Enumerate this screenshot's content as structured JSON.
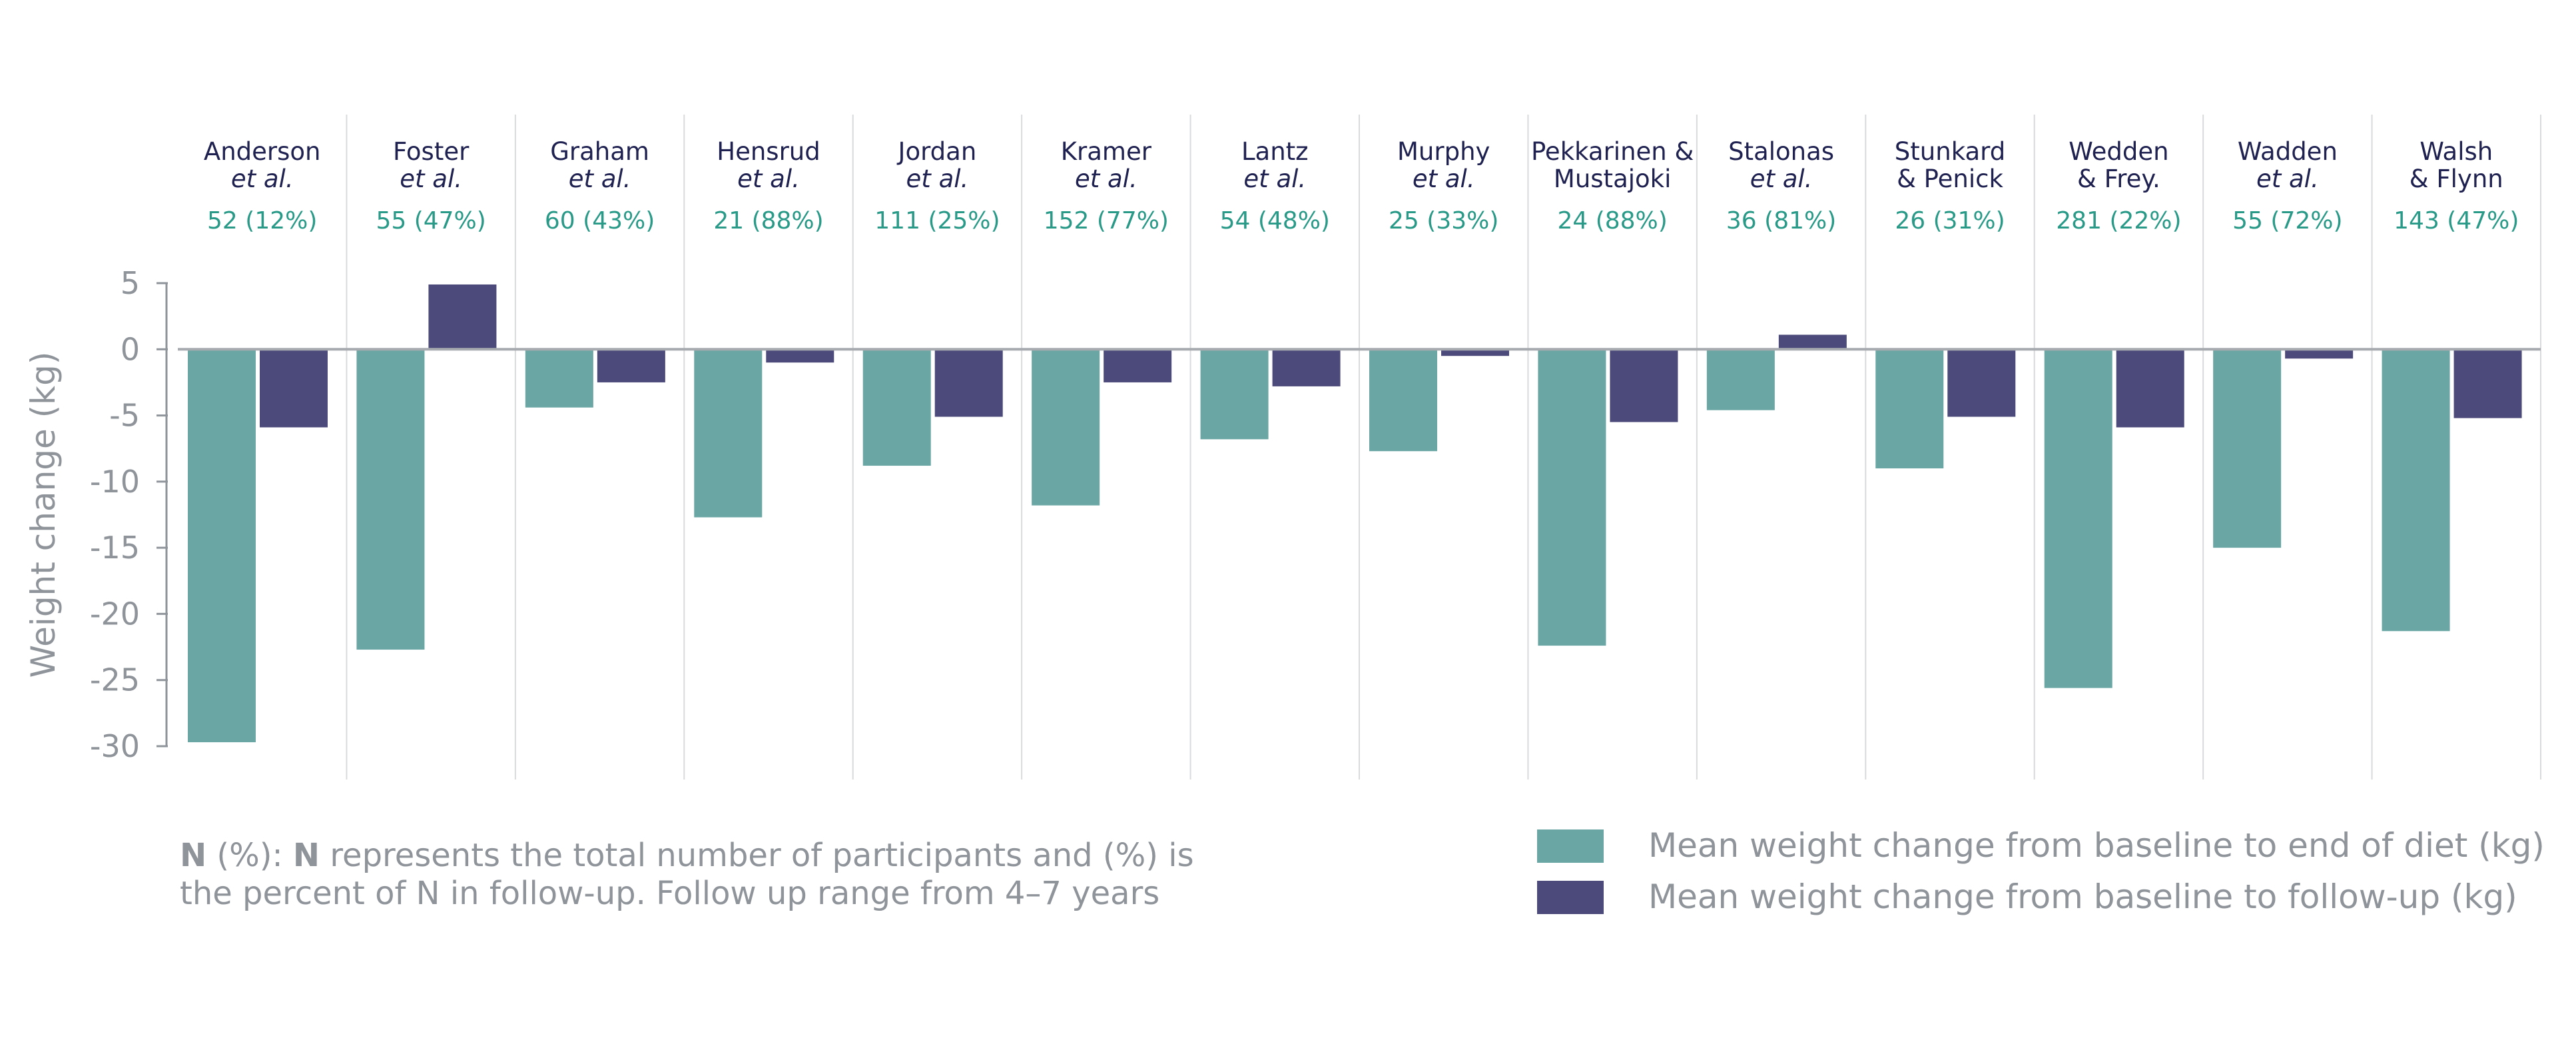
{
  "colors": {
    "end_of_diet": "#6aa6a4",
    "follow_up": "#4c4a7a",
    "study_name": "#1f2150",
    "study_n": "#2a9a88",
    "axis": "#8f949b",
    "divider": "#d9dadc",
    "zero_line": "#a7abb0"
  },
  "chart_data": {
    "type": "bar",
    "ylabel": "Weight change (kg)",
    "ylim": [
      -30,
      5
    ],
    "yticks": [
      5,
      0,
      -5,
      -10,
      -15,
      -20,
      -25,
      -30
    ],
    "grid": false,
    "legend_position": "bottom-right",
    "categories": [
      {
        "name_line1": "Anderson",
        "name_line2": "et al.",
        "line2_italic": true,
        "n": "52 (12%)"
      },
      {
        "name_line1": "Foster",
        "name_line2": "et al.",
        "line2_italic": true,
        "n": "55 (47%)"
      },
      {
        "name_line1": "Graham",
        "name_line2": "et al.",
        "line2_italic": true,
        "n": "60 (43%)"
      },
      {
        "name_line1": "Hensrud",
        "name_line2": "et al.",
        "line2_italic": true,
        "n": "21 (88%)"
      },
      {
        "name_line1": "Jordan",
        "name_line2": "et al.",
        "line2_italic": true,
        "n": "111 (25%)"
      },
      {
        "name_line1": "Kramer",
        "name_line2": "et al.",
        "line2_italic": true,
        "n": "152 (77%)"
      },
      {
        "name_line1": "Lantz",
        "name_line2": "et al.",
        "line2_italic": true,
        "n": "54 (48%)"
      },
      {
        "name_line1": "Murphy",
        "name_line2": "et al.",
        "line2_italic": true,
        "n": "25 (33%)"
      },
      {
        "name_line1": "Pekkarinen &",
        "name_line2": "Mustajoki",
        "line2_italic": false,
        "n": "24 (88%)"
      },
      {
        "name_line1": "Stalonas",
        "name_line2": "et al.",
        "line2_italic": true,
        "n": "36 (81%)"
      },
      {
        "name_line1": "Stunkard",
        "name_line2": "& Penick",
        "line2_italic": false,
        "n": "26 (31%)"
      },
      {
        "name_line1": "Wedden",
        "name_line2": "& Frey.",
        "line2_italic": false,
        "n": "281 (22%)"
      },
      {
        "name_line1": "Wadden",
        "name_line2": "et al.",
        "line2_italic": true,
        "n": "55 (72%)"
      },
      {
        "name_line1": "Walsh",
        "name_line2": "& Flynn",
        "line2_italic": false,
        "n": "143 (47%)"
      }
    ],
    "series": [
      {
        "name": "Mean weight change from baseline to end of diet (kg)",
        "color": "#6aa6a4",
        "values": [
          -29.7,
          -22.7,
          -4.4,
          -12.7,
          -8.8,
          -11.8,
          -6.8,
          -7.7,
          -22.4,
          -4.6,
          -9.0,
          -25.6,
          -15.0,
          -21.3
        ]
      },
      {
        "name": "Mean weight change from baseline to follow-up (kg)",
        "color": "#4c4a7a",
        "values": [
          -5.9,
          4.9,
          -2.5,
          -1.0,
          -5.1,
          -2.5,
          -2.8,
          -0.5,
          -5.5,
          1.1,
          -5.1,
          -5.9,
          -0.7,
          -5.2
        ]
      }
    ]
  },
  "note": {
    "bold_n": "N",
    "line1_part1": " (%): ",
    "bold_n2": "N",
    "line1_part2": " represents the total number of participants and (%) is",
    "line2": "the percent of N in follow-up. Follow up range from 4–7 years"
  }
}
